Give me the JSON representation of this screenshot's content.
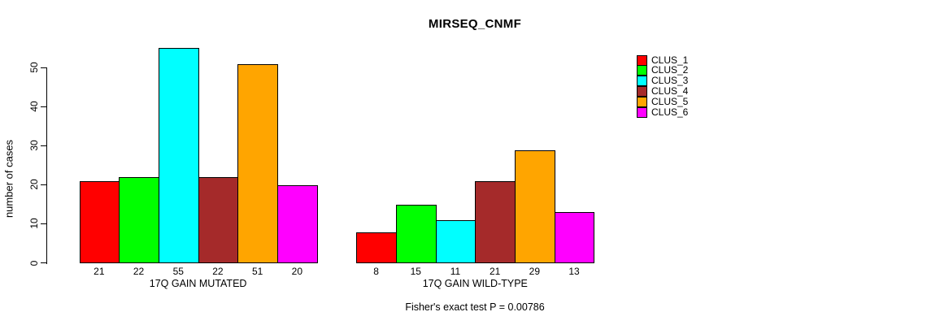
{
  "chart_data": {
    "type": "bar",
    "title": "MIRSEQ_CNMF",
    "ylabel": "number of cases",
    "yticks": [
      0,
      10,
      20,
      30,
      40,
      50
    ],
    "ylim": [
      0,
      55
    ],
    "grid": false,
    "legend_position": "right",
    "groups": [
      {
        "label": "17Q GAIN MUTATED",
        "values": [
          21,
          22,
          55,
          22,
          51,
          20
        ]
      },
      {
        "label": "17Q GAIN WILD-TYPE",
        "values": [
          8,
          15,
          11,
          21,
          29,
          13
        ]
      }
    ],
    "legend": [
      {
        "name": "CLUS_1",
        "color": "#FF0000"
      },
      {
        "name": "CLUS_2",
        "color": "#00FF00"
      },
      {
        "name": "CLUS_3",
        "color": "#00FFFF"
      },
      {
        "name": "CLUS_4",
        "color": "#A52A2A"
      },
      {
        "name": "CLUS_5",
        "color": "#FFA500"
      },
      {
        "name": "CLUS_6",
        "color": "#FF00FF"
      }
    ],
    "annotation": "Fisher's exact test P = 0.00786"
  }
}
